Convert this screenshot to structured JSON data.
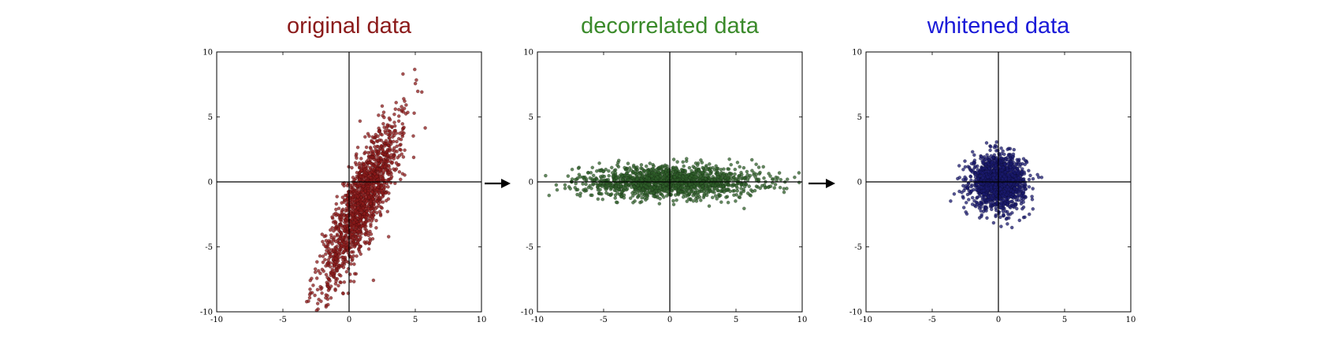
{
  "arrow_icon": "arrow-right-icon",
  "chart_data": [
    {
      "type": "scatter",
      "title": "original data",
      "title_color": "#8b1a1a",
      "point_color": "#8b1a1a",
      "xlim": [
        -10,
        10
      ],
      "ylim": [
        -10,
        10
      ],
      "xticks": [
        "-10",
        "-5",
        "0",
        "5",
        "10"
      ],
      "yticks": [
        "-10",
        "-5",
        "0",
        "5",
        "10"
      ],
      "grid": false,
      "n_points": 1500,
      "distribution": {
        "mean": [
          1.0,
          -1.5
        ],
        "std_major": 3.4,
        "std_minor": 0.75,
        "angle_deg": 67
      }
    },
    {
      "type": "scatter",
      "title": "decorrelated data",
      "title_color": "#3a8a2a",
      "point_color": "#2f5f2a",
      "xlim": [
        -10,
        10
      ],
      "ylim": [
        -10,
        10
      ],
      "xticks": [
        "-10",
        "-5",
        "0",
        "5",
        "10"
      ],
      "yticks": [
        "-10",
        "-5",
        "0",
        "5",
        "10"
      ],
      "grid": false,
      "n_points": 1500,
      "distribution": {
        "mean": [
          0,
          0
        ],
        "std_major": 3.4,
        "std_minor": 0.6,
        "angle_deg": 0
      }
    },
    {
      "type": "scatter",
      "title": "whitened data",
      "title_color": "#1a1ad8",
      "point_color": "#1a1a6e",
      "xlim": [
        -10,
        10
      ],
      "ylim": [
        -10,
        10
      ],
      "xticks": [
        "-10",
        "-5",
        "0",
        "5",
        "10"
      ],
      "yticks": [
        "-10",
        "-5",
        "0",
        "5",
        "10"
      ],
      "grid": false,
      "n_points": 1500,
      "distribution": {
        "mean": [
          0,
          0
        ],
        "std_major": 1.0,
        "std_minor": 1.0,
        "angle_deg": 0
      }
    }
  ]
}
